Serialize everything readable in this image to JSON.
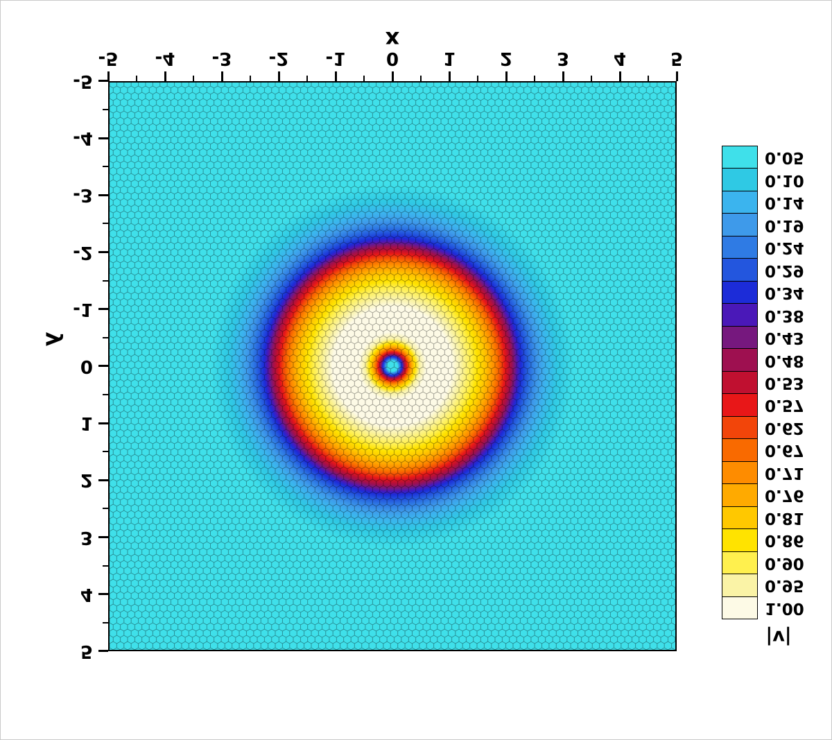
{
  "figure": {
    "x_title": "x",
    "y_title": "y",
    "colorbar_title": "|v|"
  },
  "chart_data": {
    "type": "heatmap",
    "subtype": "filled-contour of velocity magnitude on an unstructured polygonal (Voronoi/honeycomb) mesh",
    "title": "",
    "xlabel": "x",
    "ylabel": "y",
    "xlim": [
      -5,
      5
    ],
    "ylim": [
      -5,
      5
    ],
    "x_major_ticks": [
      -5,
      -4,
      -3,
      -2,
      -1,
      0,
      1,
      2,
      3,
      4,
      5
    ],
    "y_major_ticks": [
      -5,
      -4,
      -3,
      -2,
      -1,
      0,
      1,
      2,
      3,
      4,
      5
    ],
    "minor_tick_step": 0.5,
    "grid": false,
    "legend_position": "colorbar-right",
    "orientation_note": "entire figure (plot, labels, colorbar) appears vertically mirrored in the screenshot, so all text reads upside-down",
    "colorbar": {
      "label": "|v|",
      "levels": [
        0.05,
        0.1,
        0.14,
        0.19,
        0.24,
        0.29,
        0.34,
        0.38,
        0.43,
        0.48,
        0.53,
        0.57,
        0.62,
        0.67,
        0.71,
        0.76,
        0.81,
        0.86,
        0.9,
        0.95,
        1.0
      ],
      "colors": [
        "#3FE0EA",
        "#2FC9E4",
        "#3BB4EE",
        "#3E9AEA",
        "#2F7BE4",
        "#2356DE",
        "#1C2CD8",
        "#4A18B8",
        "#76187E",
        "#9E1050",
        "#C01030",
        "#E81718",
        "#F2450A",
        "#F96A00",
        "#FE8C00",
        "#FFAA00",
        "#FFC800",
        "#FFE300",
        "#FFF04E",
        "#FAF3A6",
        "#FDFAE6"
      ]
    },
    "field": {
      "description": "axisymmetric vortex centered at (0,0): |v|~0.05 cyan far field, tiny low-velocity core at the origin, steep rise to a broad cream/white plateau |v|~1.0 for r~0.5-1.1, then decay through yellow/orange/red rings to a dark blue ring near r~2.2 and back to cyan by r~3",
      "radial_profile": {
        "r": [
          0.0,
          0.09,
          0.13,
          0.17,
          0.21,
          0.25,
          0.29,
          0.34,
          0.4,
          0.48,
          0.6,
          1.05,
          1.2,
          1.38,
          1.5,
          1.62,
          1.71,
          1.79,
          1.86,
          1.92,
          1.98,
          2.04,
          2.1,
          2.15,
          2.2,
          2.26,
          2.35,
          2.45,
          2.56,
          2.7,
          2.9,
          3.2,
          5.0
        ],
        "v": [
          0.02,
          0.05,
          0.24,
          0.34,
          0.48,
          0.57,
          0.67,
          0.76,
          0.86,
          0.95,
          1.0,
          1.0,
          0.95,
          0.9,
          0.86,
          0.81,
          0.76,
          0.71,
          0.67,
          0.62,
          0.57,
          0.53,
          0.48,
          0.43,
          0.38,
          0.34,
          0.29,
          0.24,
          0.19,
          0.14,
          0.1,
          0.05,
          0.05
        ]
      }
    },
    "mesh": {
      "type": "voronoi-polygonal",
      "appearance": "thousands of small hexagon-like cells outlined in black covering the whole domain",
      "approx_cell_size_px": 11
    }
  }
}
